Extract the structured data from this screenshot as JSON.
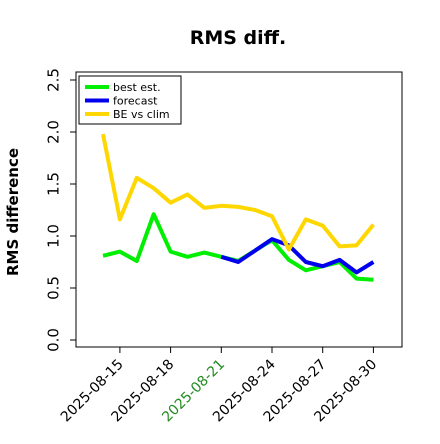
{
  "chart_data": {
    "type": "line",
    "title": "RMS diff.",
    "ylabel": "RMS difference",
    "xlabel": "",
    "x": [
      "2025-08-14",
      "2025-08-15",
      "2025-08-16",
      "2025-08-17",
      "2025-08-18",
      "2025-08-19",
      "2025-08-20",
      "2025-08-21",
      "2025-08-22",
      "2025-08-23",
      "2025-08-24",
      "2025-08-25",
      "2025-08-26",
      "2025-08-27",
      "2025-08-28",
      "2025-08-29",
      "2025-08-30"
    ],
    "xticks": [
      "2025-08-15",
      "2025-08-18",
      "2025-08-21",
      "2025-08-24",
      "2025-08-27",
      "2025-08-30"
    ],
    "xtick_colors": [
      "#000000",
      "#000000",
      "#228b22",
      "#000000",
      "#000000",
      "#000000"
    ],
    "ylim": [
      0,
      2.5
    ],
    "yticks": [
      "0.0",
      "0.5",
      "1.0",
      "1.5",
      "2.0",
      "2.5"
    ],
    "grid": false,
    "legend_position": "top-left",
    "series": [
      {
        "name": "best est.",
        "color": "#00ee00",
        "values": [
          0.81,
          0.85,
          0.76,
          1.21,
          0.85,
          0.8,
          0.84,
          0.8,
          0.76,
          0.86,
          0.96,
          0.77,
          0.67,
          0.71,
          0.75,
          0.59,
          0.58
        ]
      },
      {
        "name": "forecast",
        "color": "#0000ee",
        "values": [
          null,
          null,
          null,
          null,
          null,
          null,
          null,
          0.8,
          0.75,
          0.86,
          0.97,
          0.91,
          0.75,
          0.71,
          0.77,
          0.65,
          0.75
        ]
      },
      {
        "name": "BE vs clim",
        "color": "#ffd700",
        "values": [
          1.98,
          1.16,
          1.56,
          1.46,
          1.32,
          1.4,
          1.27,
          1.29,
          1.28,
          1.25,
          1.19,
          0.87,
          1.16,
          1.1,
          0.9,
          0.91,
          1.11
        ]
      }
    ]
  }
}
